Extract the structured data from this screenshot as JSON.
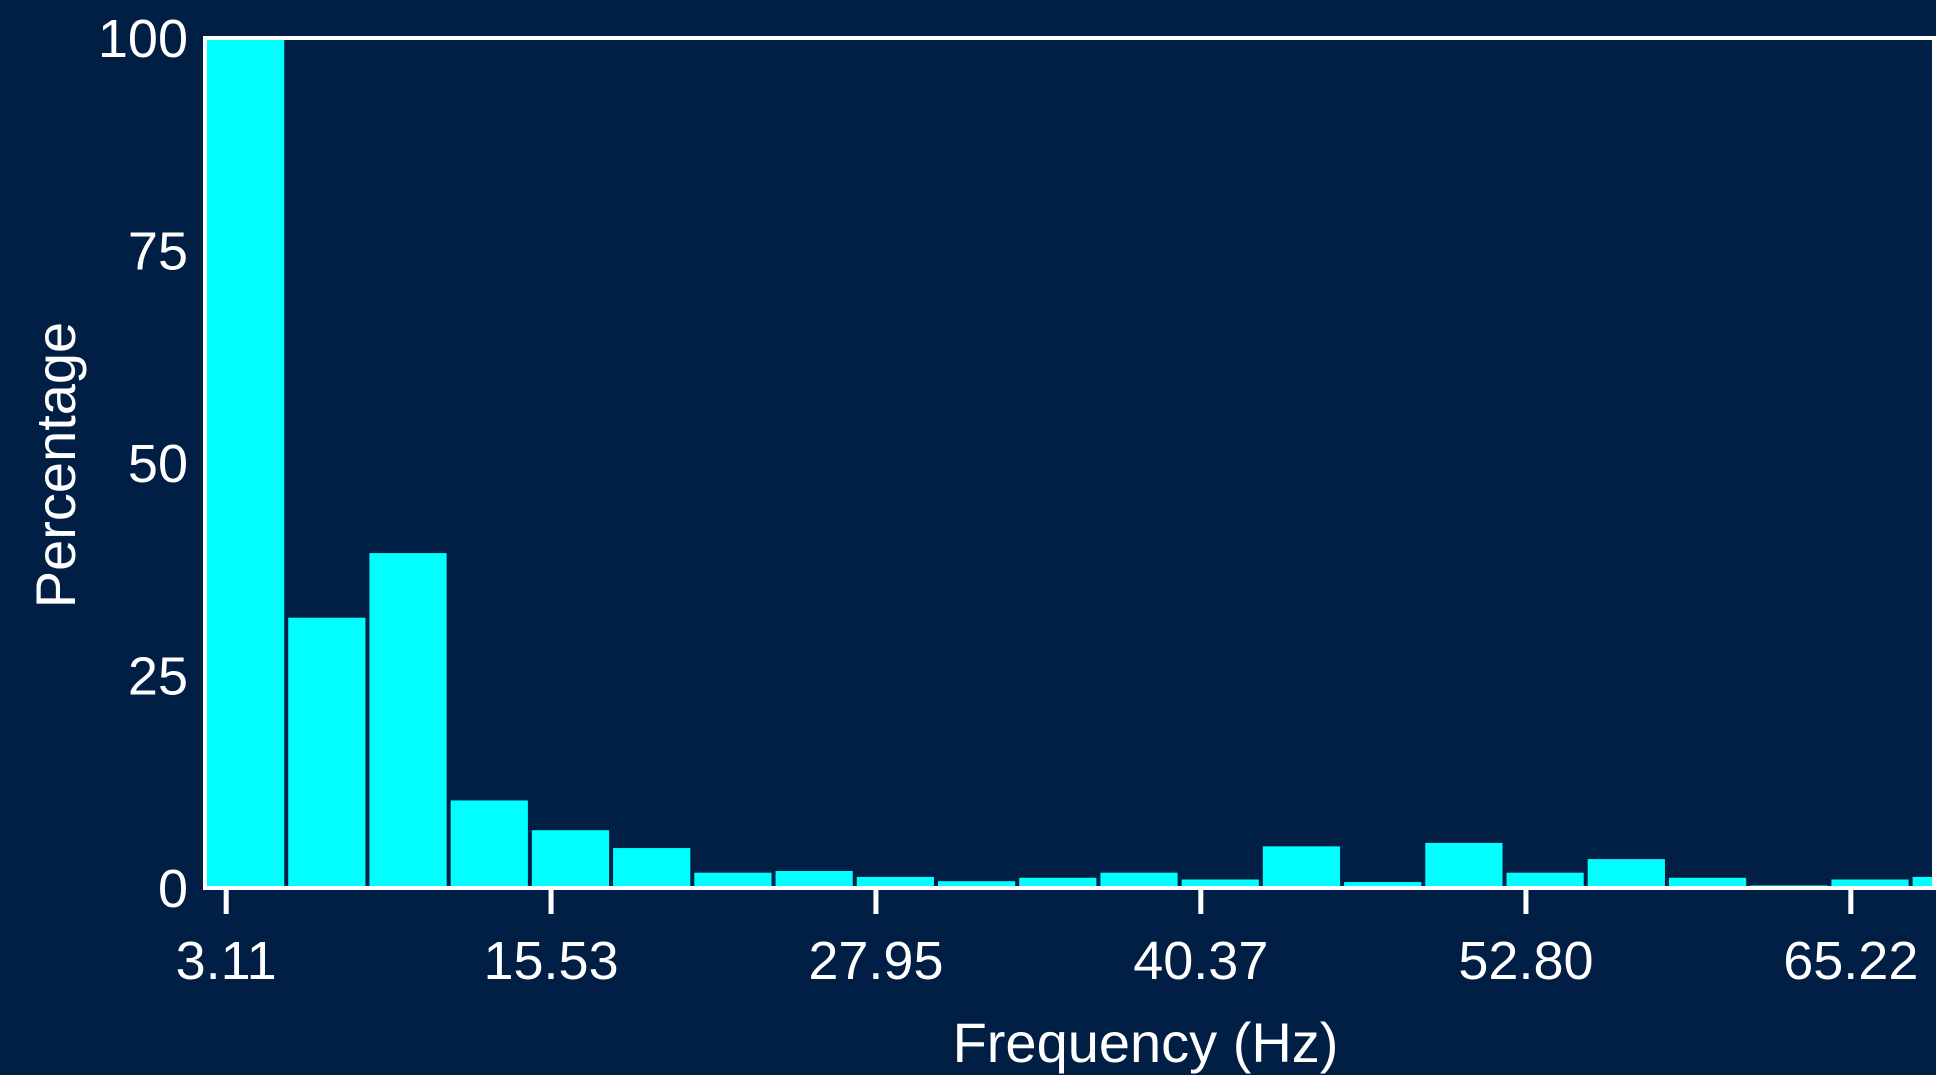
{
  "chart_data": {
    "type": "bar",
    "title": "",
    "xlabel": "Frequency (Hz)",
    "ylabel": "Percentage",
    "ylim": [
      0,
      100
    ],
    "xlim": [
      2.3,
      68.4
    ],
    "yticks": [
      0,
      25,
      50,
      75,
      100
    ],
    "xticks": [
      3.11,
      15.53,
      27.95,
      40.37,
      52.8,
      65.22
    ],
    "xtick_labels": [
      "3.11",
      "15.53",
      "27.95",
      "40.37",
      "52.80",
      "65.22"
    ],
    "ytick_labels": [
      "0",
      "25",
      "50",
      "75",
      "100"
    ],
    "bin_width": 3.105,
    "bin_starts": [
      2.3,
      5.405,
      8.51,
      11.615,
      14.72,
      17.825,
      20.93,
      24.035,
      27.14,
      30.245,
      33.35,
      36.455,
      39.56,
      42.665,
      45.77,
      48.875,
      51.98,
      55.085,
      58.19,
      61.295,
      64.4,
      67.505
    ],
    "values": [
      100,
      31.8,
      39.4,
      10.3,
      6.8,
      4.7,
      1.8,
      2.0,
      1.3,
      0.8,
      1.2,
      1.8,
      1.0,
      4.9,
      0.7,
      5.3,
      1.8,
      3.4,
      1.2,
      0.3,
      1.0,
      1.3
    ],
    "grid": false,
    "legend": "none",
    "colors": {
      "background": "#011f44",
      "bar": "#00ffff",
      "axis": "#ffffff",
      "text": "#ffffff"
    }
  }
}
